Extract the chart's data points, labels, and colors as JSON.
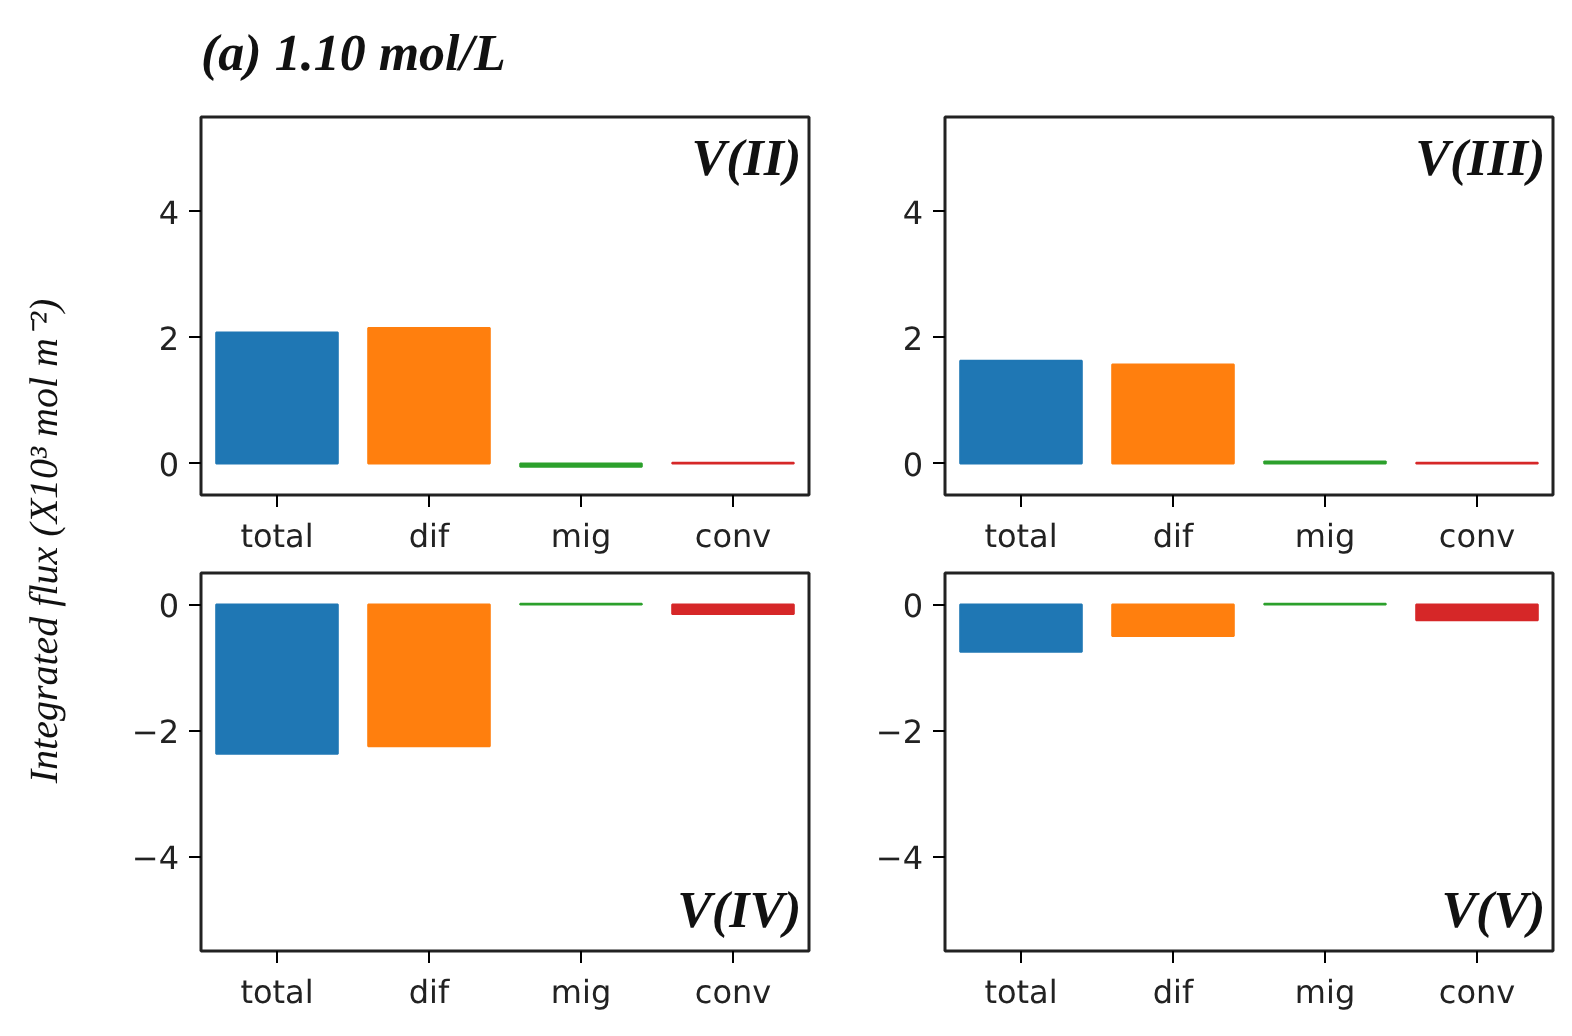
{
  "chart_data": [
    {
      "type": "bar",
      "title": "(a) 1.10 mol/L",
      "ylabel": "Integrated flux (X10³ mol m⁻²)",
      "categories": [
        "total",
        "dif",
        "mig",
        "conv"
      ],
      "values": [
        2.08,
        2.15,
        -0.05,
        0.01
      ],
      "colors": [
        "#1f77b4",
        "#ff7f0e",
        "#2ca02c",
        "#d62728"
      ],
      "ylim": [
        -0.5,
        5.5
      ],
      "yticks": [
        0,
        2,
        4
      ],
      "annotations": [
        "V(II)"
      ],
      "grid": false
    },
    {
      "type": "bar",
      "categories": [
        "total",
        "dif",
        "mig",
        "conv"
      ],
      "values": [
        1.63,
        1.57,
        0.03,
        0.01
      ],
      "colors": [
        "#1f77b4",
        "#ff7f0e",
        "#2ca02c",
        "#d62728"
      ],
      "ylim": [
        -0.5,
        5.5
      ],
      "yticks": [
        0,
        2,
        4
      ],
      "annotations": [
        "V(III)"
      ],
      "grid": false
    },
    {
      "type": "bar",
      "categories": [
        "total",
        "dif",
        "mig",
        "conv"
      ],
      "values": [
        -2.37,
        -2.25,
        0.01,
        -0.15
      ],
      "colors": [
        "#1f77b4",
        "#ff7f0e",
        "#2ca02c",
        "#d62728"
      ],
      "ylim": [
        -5.5,
        0.5
      ],
      "yticks": [
        -4,
        -2,
        0
      ],
      "annotations": [
        "V(IV)"
      ],
      "grid": false
    },
    {
      "type": "bar",
      "categories": [
        "total",
        "dif",
        "mig",
        "conv"
      ],
      "values": [
        -0.75,
        -0.5,
        0.01,
        -0.25
      ],
      "colors": [
        "#1f77b4",
        "#ff7f0e",
        "#2ca02c",
        "#d62728"
      ],
      "ylim": [
        -5.5,
        0.5
      ],
      "yticks": [
        -4,
        -2,
        0
      ],
      "annotations": [
        "V(V)"
      ],
      "grid": false
    }
  ]
}
